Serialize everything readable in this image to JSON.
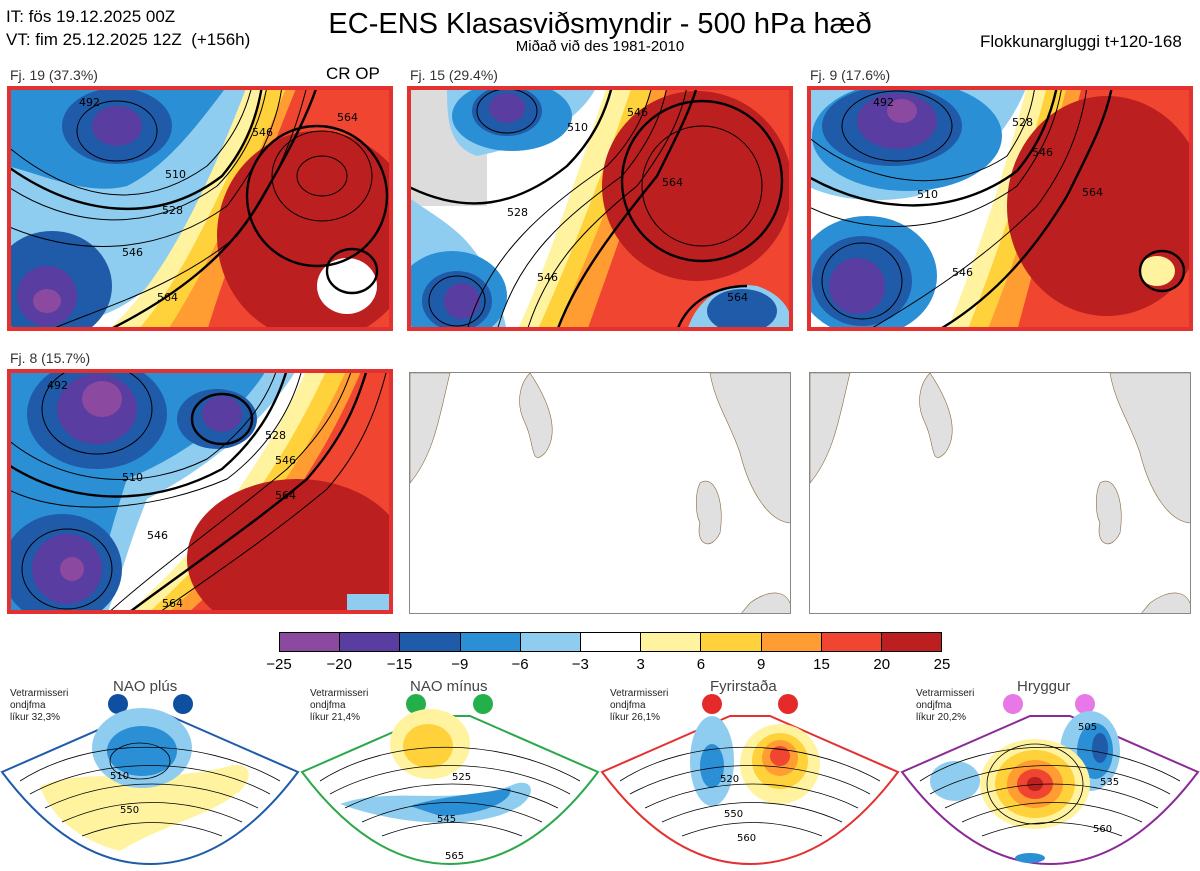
{
  "header": {
    "it_line": "IT: fös 19.12.2025 00Z",
    "vt_line": "VT: fim 25.12.2025 12Z  (+156h)",
    "title": "EC-ENS Klasasviðsmyndir - 500 hPa hæð",
    "subtitle": "Miðað við des 1981-2010",
    "window": "Flokkunargluggi t+120-168",
    "cr_op": "CR OP"
  },
  "panels": [
    {
      "label": "Fj. 19 (37.3%)",
      "contours": [
        "492",
        "510",
        "528",
        "546",
        "564",
        "546",
        "564"
      ]
    },
    {
      "label": "Fj. 15 (29.4%)",
      "contours": [
        "510",
        "528",
        "546",
        "564",
        "546",
        "564"
      ]
    },
    {
      "label": "Fj. 9 (17.6%)",
      "contours": [
        "492",
        "510",
        "528",
        "546",
        "564",
        "546"
      ]
    },
    {
      "label": "Fj. 8 (15.7%)",
      "contours": [
        "492",
        "510",
        "528",
        "546",
        "564",
        "546",
        "564"
      ]
    }
  ],
  "colorbar": {
    "colors": [
      "#8b4aa0",
      "#5a3da0",
      "#1f5ba8",
      "#2b8fd6",
      "#8fcdf0",
      "#ffffff",
      "#fff3a0",
      "#ffd23c",
      "#ff9c32",
      "#f04530",
      "#bc1f1f"
    ],
    "ticks": [
      "−25",
      "−20",
      "−15",
      "−9",
      "−6",
      "−3",
      "3",
      "6",
      "9",
      "15",
      "20",
      "25"
    ]
  },
  "regimes": [
    {
      "name": "NAO plús",
      "info": [
        "Vetrarmisseri",
        "ondjfma",
        "líkur 32,3%"
      ],
      "color": "#1f5ba8",
      "dot_color": "#0e4fa0",
      "labels": [
        "510",
        "550"
      ]
    },
    {
      "name": "NAO mínus",
      "info": [
        "Vetrarmisseri",
        "ondjfma",
        "líkur 21,4%"
      ],
      "color": "#2aa84a",
      "dot_color": "#23b04a",
      "labels": [
        "525",
        "545",
        "565"
      ]
    },
    {
      "name": "Fyrirstaða",
      "info": [
        "Vetrarmisseri",
        "ondjfma",
        "líkur 26,1%"
      ],
      "color": "#e33030",
      "dot_color": "#e52a2a",
      "labels": [
        "520",
        "550",
        "560"
      ]
    },
    {
      "name": "Hryggur",
      "info": [
        "Vetrarmisseri",
        "ondjfma",
        "líkur 20,2%"
      ],
      "color": "#8b2a96",
      "dot_color": "#e878e8",
      "labels": [
        "505",
        "535",
        "560"
      ]
    }
  ]
}
